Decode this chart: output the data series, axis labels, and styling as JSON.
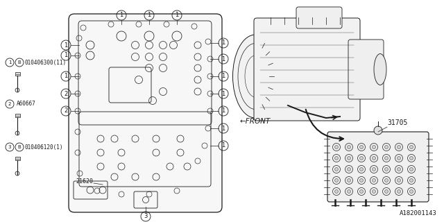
{
  "bg_color": "#ffffff",
  "line_color": "#1a1a1a",
  "fig_width": 6.4,
  "fig_height": 3.2,
  "dpi": 100,
  "parts": [
    {
      "label": "1",
      "B": true,
      "part_num": "010406300(11)"
    },
    {
      "label": "2",
      "B": false,
      "part_num": "A60667"
    },
    {
      "label": "3",
      "B": true,
      "part_num": "010406120(1)"
    }
  ],
  "label_21620": "21620",
  "label_31705": "31705",
  "label_front": "←FRONT",
  "label_diagram_id": "A182001143"
}
